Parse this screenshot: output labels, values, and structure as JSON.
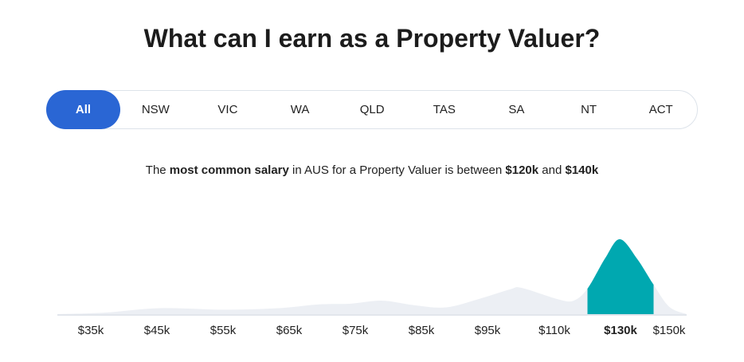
{
  "title": "What can I earn as a Property Valuer?",
  "tabs": [
    {
      "label": "All",
      "active": true
    },
    {
      "label": "NSW"
    },
    {
      "label": "VIC"
    },
    {
      "label": "WA"
    },
    {
      "label": "QLD"
    },
    {
      "label": "TAS"
    },
    {
      "label": "SA"
    },
    {
      "label": "NT"
    },
    {
      "label": "ACT"
    }
  ],
  "summary": {
    "t1": "The ",
    "b1": "most common salary",
    "t2": " in AUS for a Property Valuer is between ",
    "b2": "$120k",
    "t3": " and ",
    "b3": "$140k"
  },
  "colors": {
    "accent": "#2a66d4",
    "highlight": "#00a8b0",
    "area": "#eceff4",
    "axis": "#e2e6ec"
  },
  "chart_data": {
    "type": "area",
    "xlabel": "",
    "ylabel": "",
    "tick_labels": [
      "$35k",
      "$45k",
      "$55k",
      "$65k",
      "$75k",
      "$85k",
      "$95k",
      "$110k",
      "$130k",
      "$150k"
    ],
    "tick_values": [
      35,
      45,
      55,
      65,
      75,
      85,
      95,
      110,
      130,
      150
    ],
    "highlight_tick": "$130k",
    "highlight_range": [
      120,
      140
    ],
    "x": [
      30,
      37,
      45.4,
      55,
      63.4,
      69.5,
      74.3,
      79.1,
      83.9,
      88.7,
      93.6,
      100,
      102.7,
      111,
      115.8,
      120,
      125.4,
      129.8,
      135,
      139.9,
      144.7,
      150
    ],
    "density": [
      0,
      2,
      8,
      6,
      8,
      13,
      14,
      18,
      12,
      9,
      20,
      33,
      35,
      20,
      18,
      34,
      75,
      100,
      74,
      40,
      10,
      0
    ],
    "grid": false
  }
}
